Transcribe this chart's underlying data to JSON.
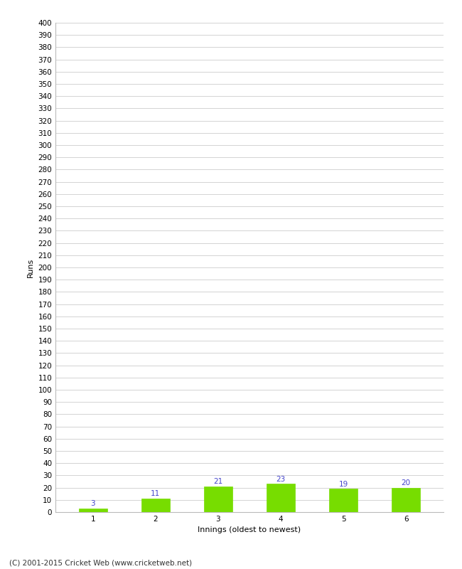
{
  "categories": [
    "1",
    "2",
    "3",
    "4",
    "5",
    "6"
  ],
  "values": [
    3,
    11,
    21,
    23,
    19,
    20
  ],
  "bar_color": "#77dd00",
  "bar_edge_color": "#77dd00",
  "label_color": "#4444cc",
  "xlabel": "Innings (oldest to newest)",
  "ylabel": "Runs",
  "ylim": [
    0,
    400
  ],
  "ytick_step": 10,
  "background_color": "#ffffff",
  "grid_color": "#cccccc",
  "footer_text": "(C) 2001-2015 Cricket Web (www.cricketweb.net)",
  "label_fontsize": 7.5,
  "axis_tick_fontsize": 7.5,
  "axis_label_fontsize": 8,
  "footer_fontsize": 7.5
}
